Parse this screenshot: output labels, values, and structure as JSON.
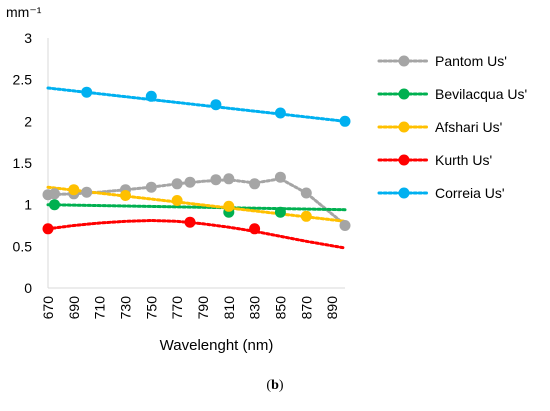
{
  "chart_data": {
    "type": "scatter",
    "title": "",
    "unit_label": "mm⁻¹",
    "xlabel": "Wavelenght (nm)",
    "ylabel": "",
    "xlim": [
      670,
      900
    ],
    "ylim": [
      0,
      3
    ],
    "x_ticks": [
      "670",
      "690",
      "710",
      "730",
      "750",
      "770",
      "790",
      "810",
      "830",
      "850",
      "870",
      "890"
    ],
    "y_ticks": [
      "0",
      "0.5",
      "1",
      "1.5",
      "2",
      "2.5",
      "3"
    ],
    "grid": false,
    "legend_position": "right",
    "series": [
      {
        "name": "Pantom Us'",
        "color": "#A5A5A5",
        "points": [
          [
            670,
            1.12
          ],
          [
            675,
            1.13
          ],
          [
            690,
            1.13
          ],
          [
            700,
            1.15
          ],
          [
            730,
            1.18
          ],
          [
            750,
            1.21
          ],
          [
            770,
            1.25
          ],
          [
            780,
            1.27
          ],
          [
            800,
            1.3
          ],
          [
            810,
            1.31
          ],
          [
            830,
            1.25
          ],
          [
            850,
            1.33
          ],
          [
            870,
            1.14
          ],
          [
            900,
            0.75
          ]
        ],
        "trend": [
          [
            670,
            1.12
          ],
          [
            690,
            1.13
          ],
          [
            710,
            1.15
          ],
          [
            730,
            1.18
          ],
          [
            750,
            1.21
          ],
          [
            770,
            1.25
          ],
          [
            790,
            1.28
          ],
          [
            810,
            1.3
          ],
          [
            830,
            1.26
          ],
          [
            850,
            1.31
          ],
          [
            870,
            1.14
          ],
          [
            900,
            0.76
          ]
        ]
      },
      {
        "name": "Bevilacqua Us'",
        "color": "#00B050",
        "points": [
          [
            675,
            1.0
          ],
          [
            810,
            0.91
          ],
          [
            850,
            0.91
          ]
        ],
        "trend": [
          [
            670,
            1.0
          ],
          [
            900,
            0.94
          ]
        ]
      },
      {
        "name": "Afshari Us'",
        "color": "#FFC000",
        "points": [
          [
            690,
            1.18
          ],
          [
            730,
            1.11
          ],
          [
            770,
            1.05
          ],
          [
            810,
            0.98
          ],
          [
            870,
            0.86
          ]
        ],
        "trend": [
          [
            670,
            1.21
          ],
          [
            900,
            0.8
          ]
        ]
      },
      {
        "name": "Kurth Us'",
        "color": "#FF0000",
        "points": [
          [
            670,
            0.71
          ],
          [
            780,
            0.79
          ],
          [
            830,
            0.71
          ]
        ],
        "trend": [
          [
            670,
            0.71
          ],
          [
            690,
            0.75
          ],
          [
            710,
            0.78
          ],
          [
            730,
            0.8
          ],
          [
            750,
            0.81
          ],
          [
            770,
            0.8
          ],
          [
            790,
            0.77
          ],
          [
            810,
            0.73
          ],
          [
            830,
            0.68
          ],
          [
            850,
            0.62
          ],
          [
            870,
            0.56
          ],
          [
            900,
            0.48
          ]
        ]
      },
      {
        "name": "Correia Us'",
        "color": "#00B0F0",
        "points": [
          [
            700,
            2.35
          ],
          [
            750,
            2.3
          ],
          [
            800,
            2.2
          ],
          [
            850,
            2.1
          ],
          [
            900,
            2.0
          ]
        ],
        "trend": [
          [
            670,
            2.4
          ],
          [
            900,
            2.0
          ]
        ]
      }
    ]
  },
  "caption": {
    "open": "(",
    "letter": "b",
    "close": ")"
  }
}
